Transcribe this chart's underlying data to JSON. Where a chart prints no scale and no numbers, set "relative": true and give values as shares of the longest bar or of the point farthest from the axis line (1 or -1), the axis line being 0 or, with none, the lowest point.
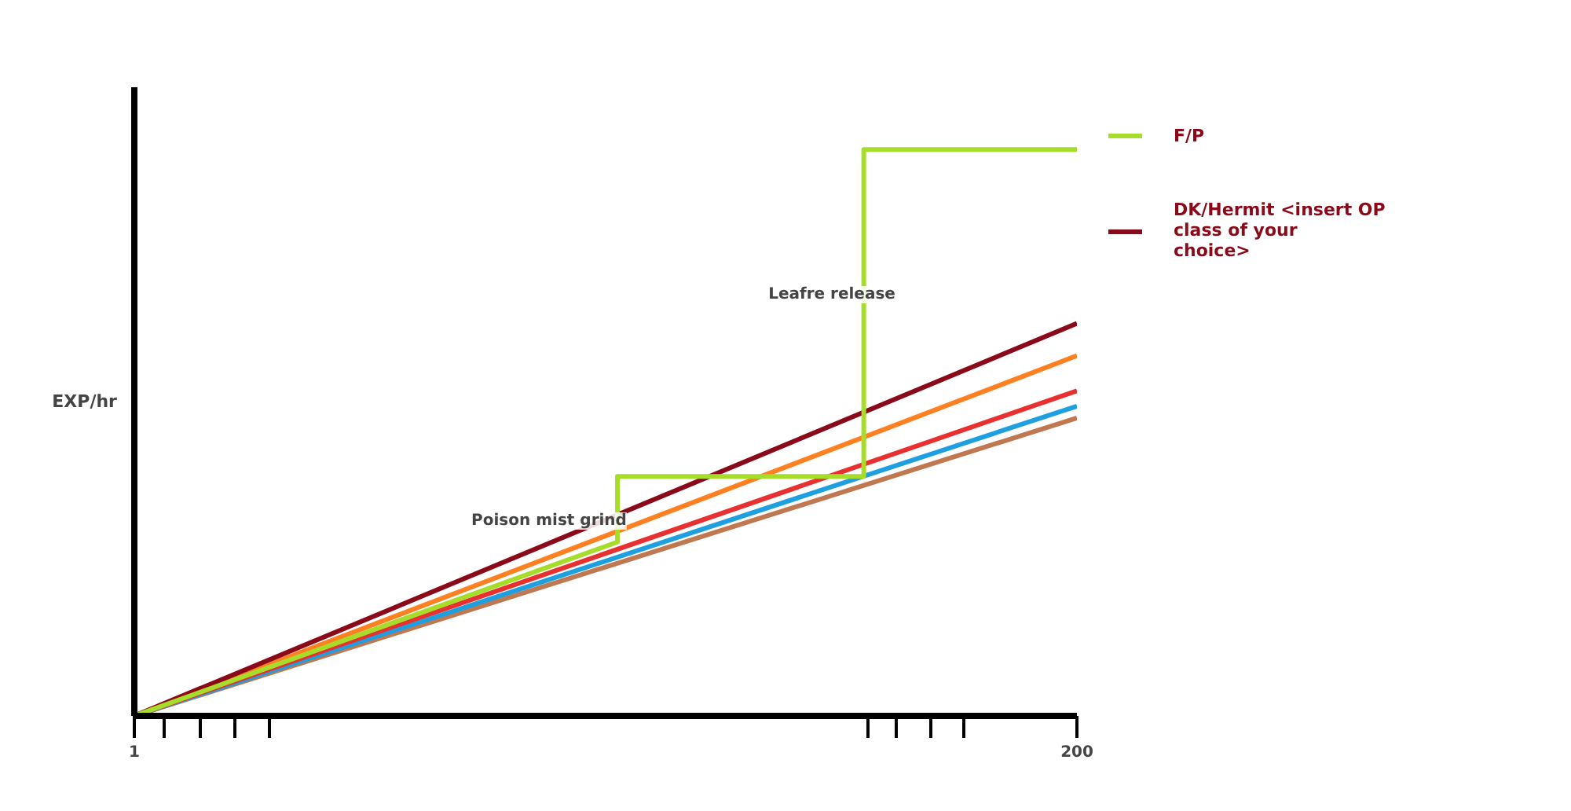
{
  "chart_data": {
    "type": "line",
    "relative": true,
    "ylabel": "EXP/hr",
    "legend": "right",
    "grid": false,
    "xlim": [
      1,
      200
    ],
    "xticks": [
      1,
      {
        "value": 7.2,
        "label": null
      },
      {
        "value": 14.8,
        "label": null
      },
      {
        "value": 22.2,
        "label": null
      },
      {
        "value": 29.6,
        "label": null
      },
      {
        "value": 156,
        "label": null
      },
      {
        "value": 161.9,
        "label": null
      },
      {
        "value": 169.3,
        "label": null
      },
      {
        "value": 176,
        "label": null
      },
      200
    ],
    "series": [
      {
        "color": "#c07850",
        "x": [
          1,
          200
        ],
        "values": [
          0,
          0.526
        ]
      },
      {
        "color": "#1ea0e0",
        "x": [
          1,
          200
        ],
        "values": [
          0,
          0.547
        ]
      },
      {
        "color": "#e83030",
        "x": [
          1,
          200
        ],
        "values": [
          0,
          0.574
        ]
      },
      {
        "color": "#ff8020",
        "x": [
          1,
          200
        ],
        "values": [
          0,
          0.636
        ]
      },
      {
        "name": "DK/Hermit <insert OP class of your choice>",
        "color": "#8b0a1a",
        "x": [
          1,
          200
        ],
        "values": [
          0,
          0.693
        ]
      },
      {
        "name": "F/P",
        "color": "#a6dc2a",
        "x": [
          1,
          103,
          103,
          155,
          155,
          200
        ],
        "values": [
          0,
          0.307,
          0.423,
          0.423,
          1.0,
          1.0
        ]
      }
    ],
    "annotations": [
      "Poison mist grind",
      "Leafre release"
    ]
  }
}
